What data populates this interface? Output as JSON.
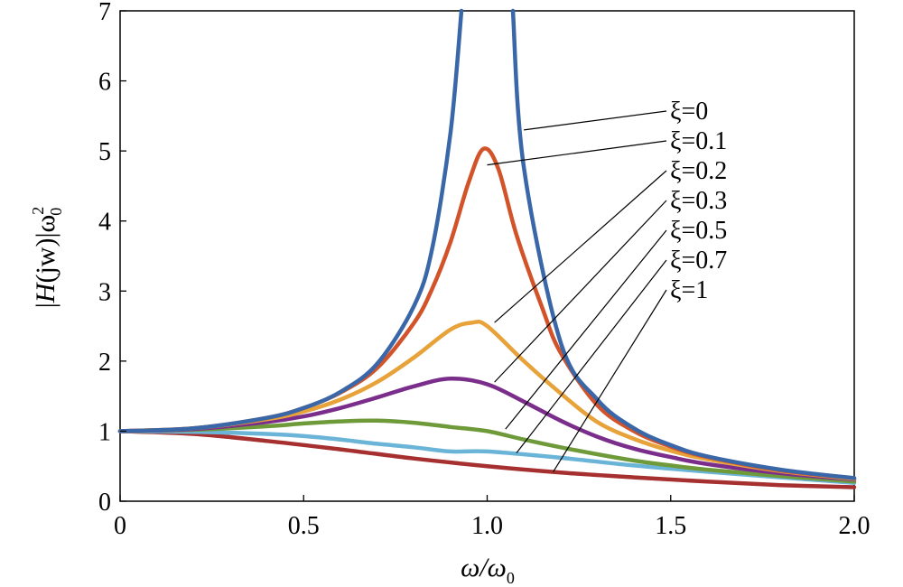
{
  "chart_data": {
    "type": "line",
    "title": "",
    "xlabel_parts": {
      "main": "ω/ω",
      "sub": "0"
    },
    "ylabel_parts": {
      "pre": "|",
      "func": "H",
      "arg": "(jw)|ω",
      "sup": "2",
      "sub": "0"
    },
    "xlim": [
      0,
      2.0
    ],
    "ylim": [
      0,
      7
    ],
    "xticks": [
      {
        "value": 0,
        "label": "0"
      },
      {
        "value": 0.5,
        "label": "0.5"
      },
      {
        "value": 1.0,
        "label": "1.0"
      },
      {
        "value": 1.5,
        "label": "1.5"
      },
      {
        "value": 2.0,
        "label": "2.0"
      }
    ],
    "yticks": [
      {
        "value": 0,
        "label": "0"
      },
      {
        "value": 1,
        "label": "1"
      },
      {
        "value": 2,
        "label": "2"
      },
      {
        "value": 3,
        "label": "3"
      },
      {
        "value": 4,
        "label": "4"
      },
      {
        "value": 5,
        "label": "5"
      },
      {
        "value": 6,
        "label": "6"
      },
      {
        "value": 7,
        "label": "7"
      }
    ],
    "grid": false,
    "series": [
      {
        "name": "ξ=0",
        "zeta": 0,
        "color": "#3a67a7",
        "x": [
          0,
          0.2,
          0.4,
          0.5,
          0.6,
          0.7,
          0.8,
          0.85,
          0.9,
          0.93,
          1.07,
          1.1,
          1.2,
          1.3,
          1.4,
          1.5,
          1.6,
          1.8,
          2.0
        ],
        "y": [
          1,
          1.04,
          1.19,
          1.33,
          1.56,
          1.96,
          2.78,
          3.6,
          5.26,
          7.0,
          7.0,
          4.76,
          2.27,
          1.45,
          1.04,
          0.8,
          0.64,
          0.45,
          0.33
        ],
        "label_anchor": [
          1.1,
          5.3
        ]
      },
      {
        "name": "ξ=0.1",
        "zeta": 0.1,
        "color": "#d2532a",
        "x": [
          0,
          0.2,
          0.4,
          0.5,
          0.6,
          0.7,
          0.8,
          0.85,
          0.9,
          0.95,
          0.99,
          1.03,
          1.08,
          1.15,
          1.2,
          1.3,
          1.4,
          1.5,
          1.6,
          1.8,
          2.0
        ],
        "y": [
          1,
          1.04,
          1.19,
          1.33,
          1.55,
          1.9,
          2.54,
          3.03,
          3.7,
          4.56,
          5.03,
          4.75,
          3.8,
          2.76,
          2.12,
          1.37,
          1.0,
          0.78,
          0.63,
          0.44,
          0.33
        ],
        "label_anchor": [
          1.0,
          4.8
        ]
      },
      {
        "name": "ξ=0.2",
        "zeta": 0.2,
        "color": "#e7a23a",
        "x": [
          0,
          0.2,
          0.4,
          0.5,
          0.6,
          0.7,
          0.8,
          0.9,
          0.96,
          1.0,
          1.1,
          1.2,
          1.3,
          1.4,
          1.5,
          1.6,
          1.8,
          2.0
        ],
        "y": [
          1,
          1.04,
          1.17,
          1.28,
          1.45,
          1.7,
          2.05,
          2.45,
          2.55,
          2.5,
          2.0,
          1.54,
          1.13,
          0.89,
          0.72,
          0.6,
          0.43,
          0.32
        ],
        "label_anchor": [
          1.02,
          2.55
        ]
      },
      {
        "name": "ξ=0.3",
        "zeta": 0.3,
        "color": "#7b2d8b",
        "x": [
          0,
          0.2,
          0.4,
          0.5,
          0.6,
          0.7,
          0.8,
          0.9,
          1.0,
          1.1,
          1.2,
          1.3,
          1.4,
          1.5,
          1.6,
          1.8,
          2.0
        ],
        "y": [
          1,
          1.03,
          1.13,
          1.21,
          1.33,
          1.48,
          1.64,
          1.75,
          1.67,
          1.42,
          1.15,
          0.92,
          0.75,
          0.63,
          0.53,
          0.4,
          0.31
        ],
        "label_anchor": [
          1.02,
          1.7
        ]
      },
      {
        "name": "ξ=0.5",
        "zeta": 0.5,
        "color": "#6e9a3a",
        "x": [
          0,
          0.2,
          0.4,
          0.5,
          0.6,
          0.7,
          0.8,
          0.9,
          1.0,
          1.1,
          1.2,
          1.3,
          1.4,
          1.5,
          1.6,
          1.8,
          2.0
        ],
        "y": [
          1,
          1.02,
          1.07,
          1.11,
          1.14,
          1.15,
          1.12,
          1.06,
          1.0,
          0.88,
          0.77,
          0.67,
          0.58,
          0.51,
          0.45,
          0.36,
          0.28
        ],
        "label_anchor": [
          1.05,
          1.03
        ]
      },
      {
        "name": "ξ=0.7",
        "zeta": 0.7,
        "color": "#6ab4d8",
        "x": [
          0,
          0.2,
          0.4,
          0.5,
          0.6,
          0.7,
          0.8,
          0.9,
          1.0,
          1.2,
          1.4,
          1.6,
          1.8,
          2.0
        ],
        "y": [
          1,
          0.99,
          0.96,
          0.93,
          0.88,
          0.82,
          0.77,
          0.71,
          0.71,
          0.62,
          0.51,
          0.42,
          0.34,
          0.26
        ],
        "label_anchor": [
          1.08,
          0.69
        ]
      },
      {
        "name": "ξ=1",
        "zeta": 1,
        "color": "#a5302f",
        "x": [
          0,
          0.2,
          0.4,
          0.6,
          0.8,
          1.0,
          1.2,
          1.4,
          1.6,
          1.8,
          2.0
        ],
        "y": [
          1,
          0.96,
          0.86,
          0.74,
          0.61,
          0.5,
          0.41,
          0.34,
          0.28,
          0.23,
          0.2
        ],
        "label_anchor": [
          1.18,
          0.42
        ]
      }
    ]
  }
}
